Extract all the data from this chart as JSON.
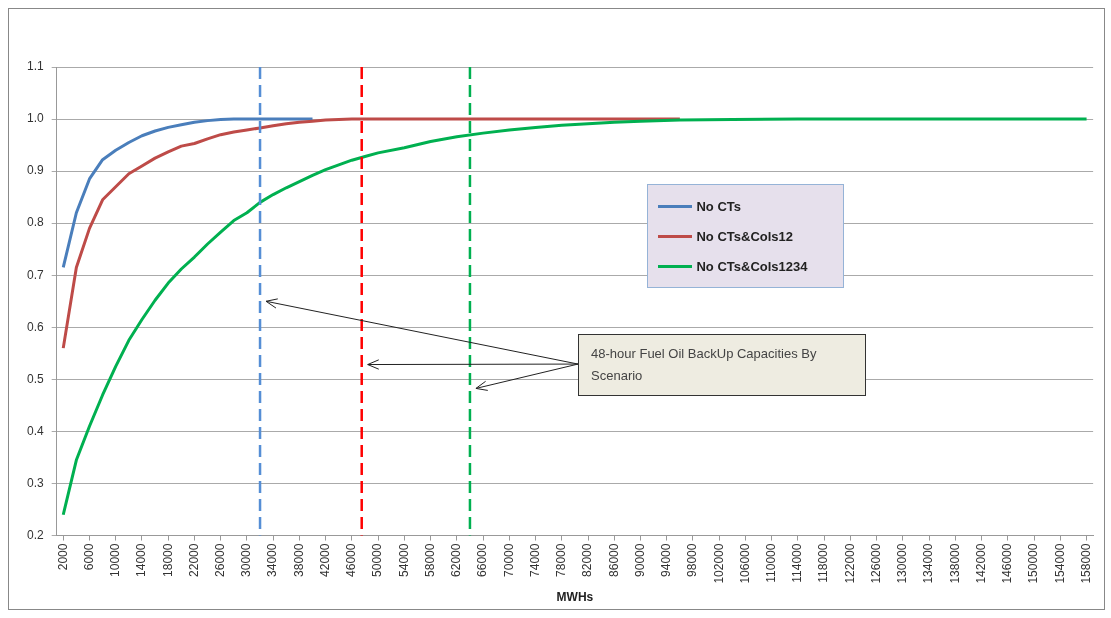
{
  "chart_data": {
    "type": "line",
    "xlabel": "MWHs",
    "xlim": [
      1000,
      159000
    ],
    "xticks": [
      2000,
      6000,
      10000,
      14000,
      18000,
      22000,
      26000,
      30000,
      34000,
      38000,
      42000,
      46000,
      50000,
      54000,
      58000,
      62000,
      66000,
      70000,
      74000,
      78000,
      82000,
      86000,
      90000,
      94000,
      98000,
      102000,
      106000,
      110000,
      114000,
      118000,
      122000,
      126000,
      130000,
      134000,
      138000,
      142000,
      146000,
      150000,
      154000,
      158000
    ],
    "ylim": [
      0.2,
      1.1
    ],
    "yticks": [
      {
        "value": 0.2,
        "label": "0.2"
      },
      {
        "value": 0.3,
        "label": "0.3"
      },
      {
        "value": 0.4,
        "label": "0.4"
      },
      {
        "value": 0.5,
        "label": "0.5"
      },
      {
        "value": 0.6,
        "label": "0.6"
      },
      {
        "value": 0.7,
        "label": "0.7"
      },
      {
        "value": 0.8,
        "label": "0.8"
      },
      {
        "value": 0.9,
        "label": "0.9"
      },
      {
        "value": 1,
        "label": "1.0"
      },
      {
        "value": 1.1,
        "label": "1.1"
      }
    ],
    "grid": "y",
    "legend": "right",
    "marker": "none",
    "line_style": "solid",
    "series": [
      {
        "name": "No CTs",
        "color": "#4a7ebb",
        "x": [
          2000,
          4000,
          6000,
          8000,
          10000,
          12000,
          14000,
          16000,
          18000,
          20000,
          22000,
          24000,
          26000,
          28000,
          40000
        ],
        "values": [
          0.715,
          0.82,
          0.885,
          0.922,
          0.94,
          0.955,
          0.968,
          0.977,
          0.984,
          0.989,
          0.994,
          0.997,
          0.999,
          1.0,
          1.0
        ]
      },
      {
        "name": "No CTs&Cols12",
        "color": "#be4b48",
        "x": [
          2000,
          4000,
          6000,
          8000,
          10000,
          12000,
          14000,
          16000,
          18000,
          20000,
          22000,
          24000,
          26000,
          28000,
          30000,
          32000,
          34000,
          36000,
          38000,
          40000,
          42000,
          44000,
          46000,
          96000
        ],
        "values": [
          0.56,
          0.715,
          0.79,
          0.845,
          0.87,
          0.895,
          0.91,
          0.925,
          0.937,
          0.948,
          0.953,
          0.962,
          0.97,
          0.975,
          0.979,
          0.983,
          0.987,
          0.991,
          0.994,
          0.996,
          0.998,
          0.999,
          1.0,
          1.0
        ]
      },
      {
        "name": "No CTs&Cols1234",
        "color": "#00b050",
        "x": [
          2000,
          4000,
          6000,
          8000,
          10000,
          12000,
          14000,
          16000,
          18000,
          20000,
          22000,
          24000,
          26000,
          28000,
          30000,
          32000,
          34000,
          36000,
          38000,
          40000,
          42000,
          44000,
          46000,
          48000,
          50000,
          54000,
          58000,
          62000,
          66000,
          70000,
          74000,
          78000,
          82000,
          86000,
          90000,
          96000,
          104000,
          114000,
          158000
        ],
        "values": [
          0.24,
          0.345,
          0.41,
          0.47,
          0.525,
          0.575,
          0.615,
          0.652,
          0.685,
          0.712,
          0.735,
          0.76,
          0.783,
          0.805,
          0.82,
          0.84,
          0.855,
          0.868,
          0.88,
          0.892,
          0.903,
          0.912,
          0.921,
          0.928,
          0.935,
          0.945,
          0.957,
          0.966,
          0.973,
          0.979,
          0.984,
          0.988,
          0.991,
          0.994,
          0.996,
          0.998,
          0.999,
          1.0,
          1.0
        ]
      }
    ],
    "ref_lines": [
      {
        "axis": "x",
        "value": 32000,
        "color": "#558ed5",
        "line_style": "dashed"
      },
      {
        "axis": "x",
        "value": 47500,
        "color": "#ff0000",
        "line_style": "dashed"
      },
      {
        "axis": "x",
        "value": 64000,
        "color": "#00b050",
        "line_style": "dashed"
      }
    ],
    "annotations": [
      "48-hour Fuel Oil BackUp Capacities By Scenario"
    ]
  }
}
